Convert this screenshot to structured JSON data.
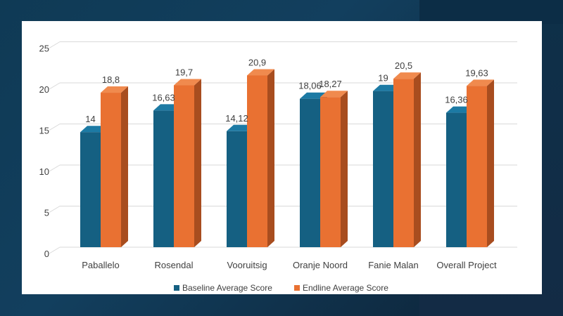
{
  "chart_data": {
    "type": "bar",
    "categories": [
      "Paballelo",
      "Rosendal",
      "Vooruitsig",
      "Oranje Noord",
      "Fanie Malan",
      "Overall Project"
    ],
    "series": [
      {
        "name": "Baseline Average Score",
        "values": [
          14,
          16.63,
          14.12,
          18.06,
          19,
          16.36
        ],
        "labels": [
          "14",
          "16,63",
          "14,12",
          "18,06",
          "19",
          "16,36"
        ]
      },
      {
        "name": "Endline Average Score",
        "values": [
          18.8,
          19.7,
          20.9,
          18.27,
          20.5,
          19.63
        ],
        "labels": [
          "18,8",
          "19,7",
          "20,9",
          "18,27",
          "20,5",
          "19,63"
        ]
      }
    ],
    "yticks": [
      "0",
      "5",
      "10",
      "15",
      "20",
      "25"
    ],
    "ylim": [
      0,
      25
    ],
    "title": "",
    "xlabel": "",
    "ylabel": "",
    "legend_position": "bottom"
  },
  "colors": {
    "baseline_front": "#156082",
    "baseline_top": "#1c7aa4",
    "baseline_side": "#0d4460",
    "endline_front": "#e97132",
    "endline_top": "#f08a4e",
    "endline_side": "#a84d1f",
    "grid": "#d9d9d9"
  }
}
